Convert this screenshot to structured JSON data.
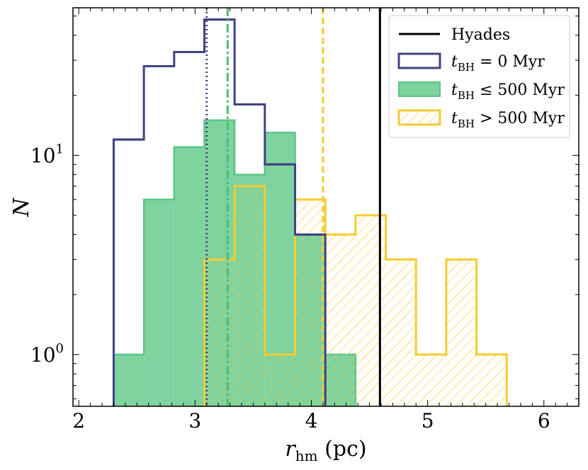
{
  "chart_data": {
    "type": "histogram",
    "xlabel": {
      "symbol": "r",
      "sub": "hm",
      "unit": " (pc)"
    },
    "ylabel": "N",
    "xlim": [
      1.95,
      6.3
    ],
    "ylim": [
      0.55,
      55
    ],
    "yscale": "log",
    "xticks": [
      2,
      3,
      4,
      5,
      6
    ],
    "yticks": [
      {
        "value": 1,
        "base": "10",
        "exp": "0"
      },
      {
        "value": 10,
        "base": "10",
        "exp": "1"
      }
    ],
    "legend_position": "top-right",
    "series": [
      {
        "name": "t_BH = 0 Myr",
        "legend": {
          "symbol": "t",
          "sub": "BH",
          "rest": " = 0 Myr"
        },
        "style": "step-outline",
        "color": "#3f4282",
        "bin_edges": [
          2.3,
          2.56,
          2.82,
          3.08,
          3.34,
          3.6,
          3.86,
          4.12
        ],
        "counts": [
          12,
          28,
          33,
          48,
          18,
          9,
          4
        ]
      },
      {
        "name": "t_BH ≤ 500 Myr",
        "legend": {
          "symbol": "t",
          "sub": "BH",
          "rest": " ≤ 500 Myr"
        },
        "style": "filled",
        "color": "#7ed39f",
        "edge": "#5cc487",
        "bin_edges": [
          2.3,
          2.56,
          2.82,
          3.08,
          3.34,
          3.6,
          3.86,
          4.12,
          4.38
        ],
        "counts": [
          1,
          6,
          11,
          15,
          8,
          13,
          4,
          1
        ]
      },
      {
        "name": "t_BH > 500 Myr",
        "legend": {
          "symbol": "t",
          "sub": "BH",
          "rest": " > 500 Myr"
        },
        "style": "hatched",
        "color": "#f5cc31",
        "bin_edges": [
          3.08,
          3.34,
          3.6,
          3.86,
          4.12,
          4.38,
          4.64,
          4.9,
          5.16,
          5.42,
          5.68
        ],
        "counts": [
          3,
          7,
          1,
          6,
          4,
          5,
          3,
          1,
          3,
          1
        ]
      }
    ],
    "vlines": [
      {
        "name": "Hyades",
        "x": 4.59,
        "color": "#000000",
        "dash": "",
        "in_legend": true
      },
      {
        "name": "median t_BH = 0 Myr",
        "x": 3.1,
        "color": "#3f4282",
        "dash": "2,4",
        "in_legend": false
      },
      {
        "name": "median t_BH ≤ 500 Myr",
        "x": 3.28,
        "color": "#4cbb73",
        "dash": "12,4,3,4",
        "in_legend": false
      },
      {
        "name": "median t_BH > 500 Myr",
        "x": 4.1,
        "color": "#f5cc31",
        "dash": "9,5",
        "in_legend": false
      }
    ]
  }
}
